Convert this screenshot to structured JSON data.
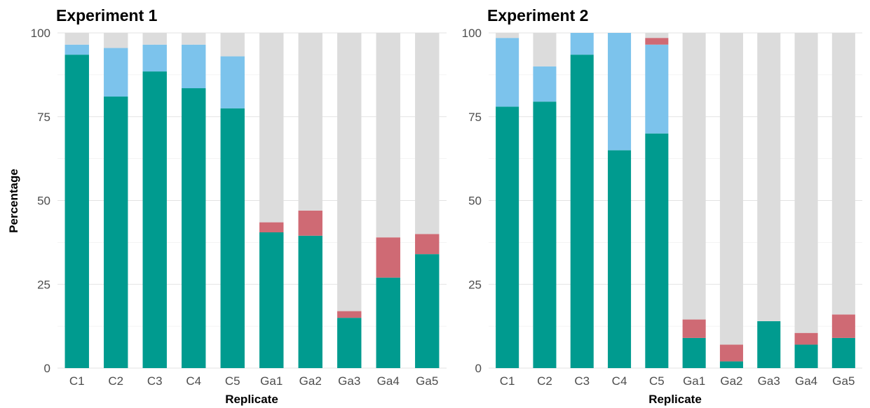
{
  "chart_data": [
    {
      "type": "bar",
      "stacked": true,
      "title": "Experiment 1",
      "xlabel": "Replicate",
      "ylabel": "Percentage",
      "ylim": [
        0,
        100
      ],
      "yticks": [
        "0",
        "25",
        "50",
        "75",
        "100"
      ],
      "categories": [
        "C1",
        "C2",
        "C3",
        "C4",
        "C5",
        "Ga1",
        "Ga2",
        "Ga3",
        "Ga4",
        "Ga5"
      ],
      "series": [
        {
          "color": "#009b8f",
          "values": [
            93.5,
            81,
            88.5,
            83.5,
            77.5,
            40.5,
            39.5,
            15,
            27,
            34
          ]
        },
        {
          "color": "#7cc3ec",
          "values": [
            3,
            14.5,
            8,
            13,
            15.5,
            0,
            0,
            0,
            0,
            0
          ]
        },
        {
          "color": "#cf6a74",
          "values": [
            0,
            0,
            0,
            0,
            0,
            3,
            7.5,
            2,
            12,
            6
          ]
        },
        {
          "color": "#dcdcdc",
          "values": [
            3.5,
            4.5,
            3.5,
            3.5,
            7,
            56.5,
            53,
            83,
            61,
            60
          ]
        }
      ],
      "grid": true
    },
    {
      "type": "bar",
      "stacked": true,
      "title": "Experiment 2",
      "xlabel": "Replicate",
      "ylabel": "",
      "ylim": [
        0,
        100
      ],
      "yticks": [
        "0",
        "25",
        "50",
        "75",
        "100"
      ],
      "categories": [
        "C1",
        "C2",
        "C3",
        "C4",
        "C5",
        "Ga1",
        "Ga2",
        "Ga3",
        "Ga4",
        "Ga5"
      ],
      "series": [
        {
          "color": "#009b8f",
          "values": [
            78,
            79.5,
            93.5,
            65,
            70,
            9,
            2,
            14,
            7,
            9
          ]
        },
        {
          "color": "#7cc3ec",
          "values": [
            20.5,
            10.5,
            6.5,
            35,
            26.5,
            0,
            0,
            0,
            0,
            0
          ]
        },
        {
          "color": "#cf6a74",
          "values": [
            0,
            0,
            0,
            0,
            2,
            5.5,
            5,
            0,
            3.5,
            7
          ]
        },
        {
          "color": "#dcdcdc",
          "values": [
            1.5,
            10,
            0,
            0,
            1.5,
            85.5,
            93,
            86,
            89.5,
            84
          ]
        }
      ],
      "grid": true
    }
  ]
}
